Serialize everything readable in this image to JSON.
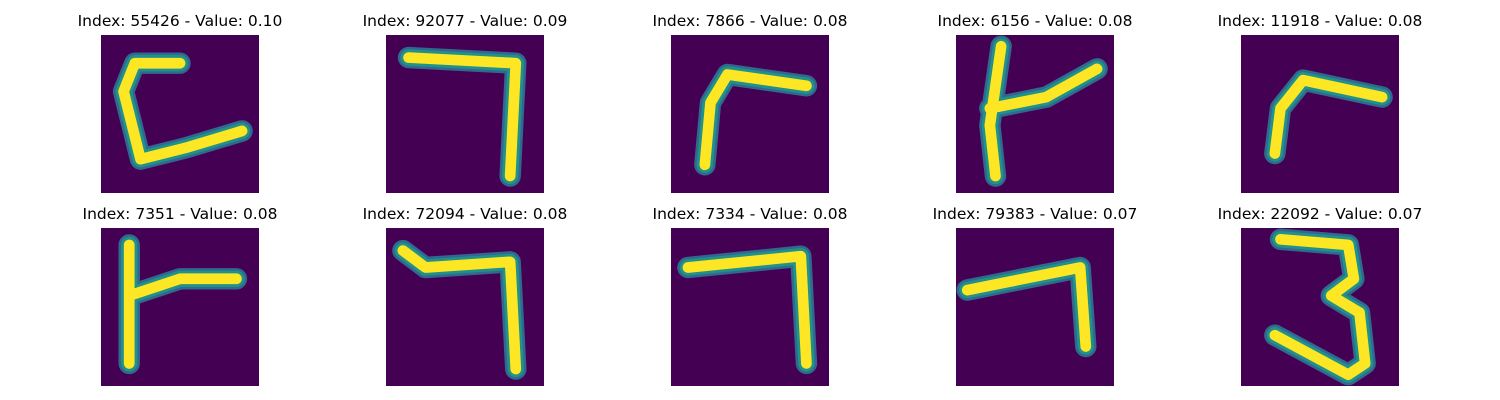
{
  "figure": {
    "panels": [
      {
        "title": "Index: 55426 - Value: 0.10",
        "depicts": "handwritten-digit",
        "index": 55426,
        "value": 0.1
      },
      {
        "title": "Index: 92077 - Value: 0.09",
        "depicts": "handwritten-digit",
        "index": 92077,
        "value": 0.09
      },
      {
        "title": "Index: 7866 - Value: 0.08",
        "depicts": "handwritten-digit",
        "index": 7866,
        "value": 0.08
      },
      {
        "title": "Index: 6156 - Value: 0.08",
        "depicts": "handwritten-digit",
        "index": 6156,
        "value": 0.08
      },
      {
        "title": "Index: 11918 - Value: 0.08",
        "depicts": "handwritten-digit",
        "index": 11918,
        "value": 0.08
      },
      {
        "title": "Index: 7351 - Value: 0.08",
        "depicts": "handwritten-digit",
        "index": 7351,
        "value": 0.08
      },
      {
        "title": "Index: 72094 - Value: 0.08",
        "depicts": "handwritten-digit",
        "index": 72094,
        "value": 0.08
      },
      {
        "title": "Index: 7334 - Value: 0.08",
        "depicts": "handwritten-digit",
        "index": 7334,
        "value": 0.08
      },
      {
        "title": "Index: 79383 - Value: 0.07",
        "depicts": "handwritten-digit",
        "index": 79383,
        "value": 0.07
      },
      {
        "title": "Index: 22092 - Value: 0.07",
        "depicts": "handwritten-digit",
        "index": 22092,
        "value": 0.07
      }
    ],
    "colors": {
      "background": "#440154",
      "stroke_core": "#fde725",
      "stroke_edge": "#21918c",
      "stroke_outer": "#31688e"
    }
  }
}
